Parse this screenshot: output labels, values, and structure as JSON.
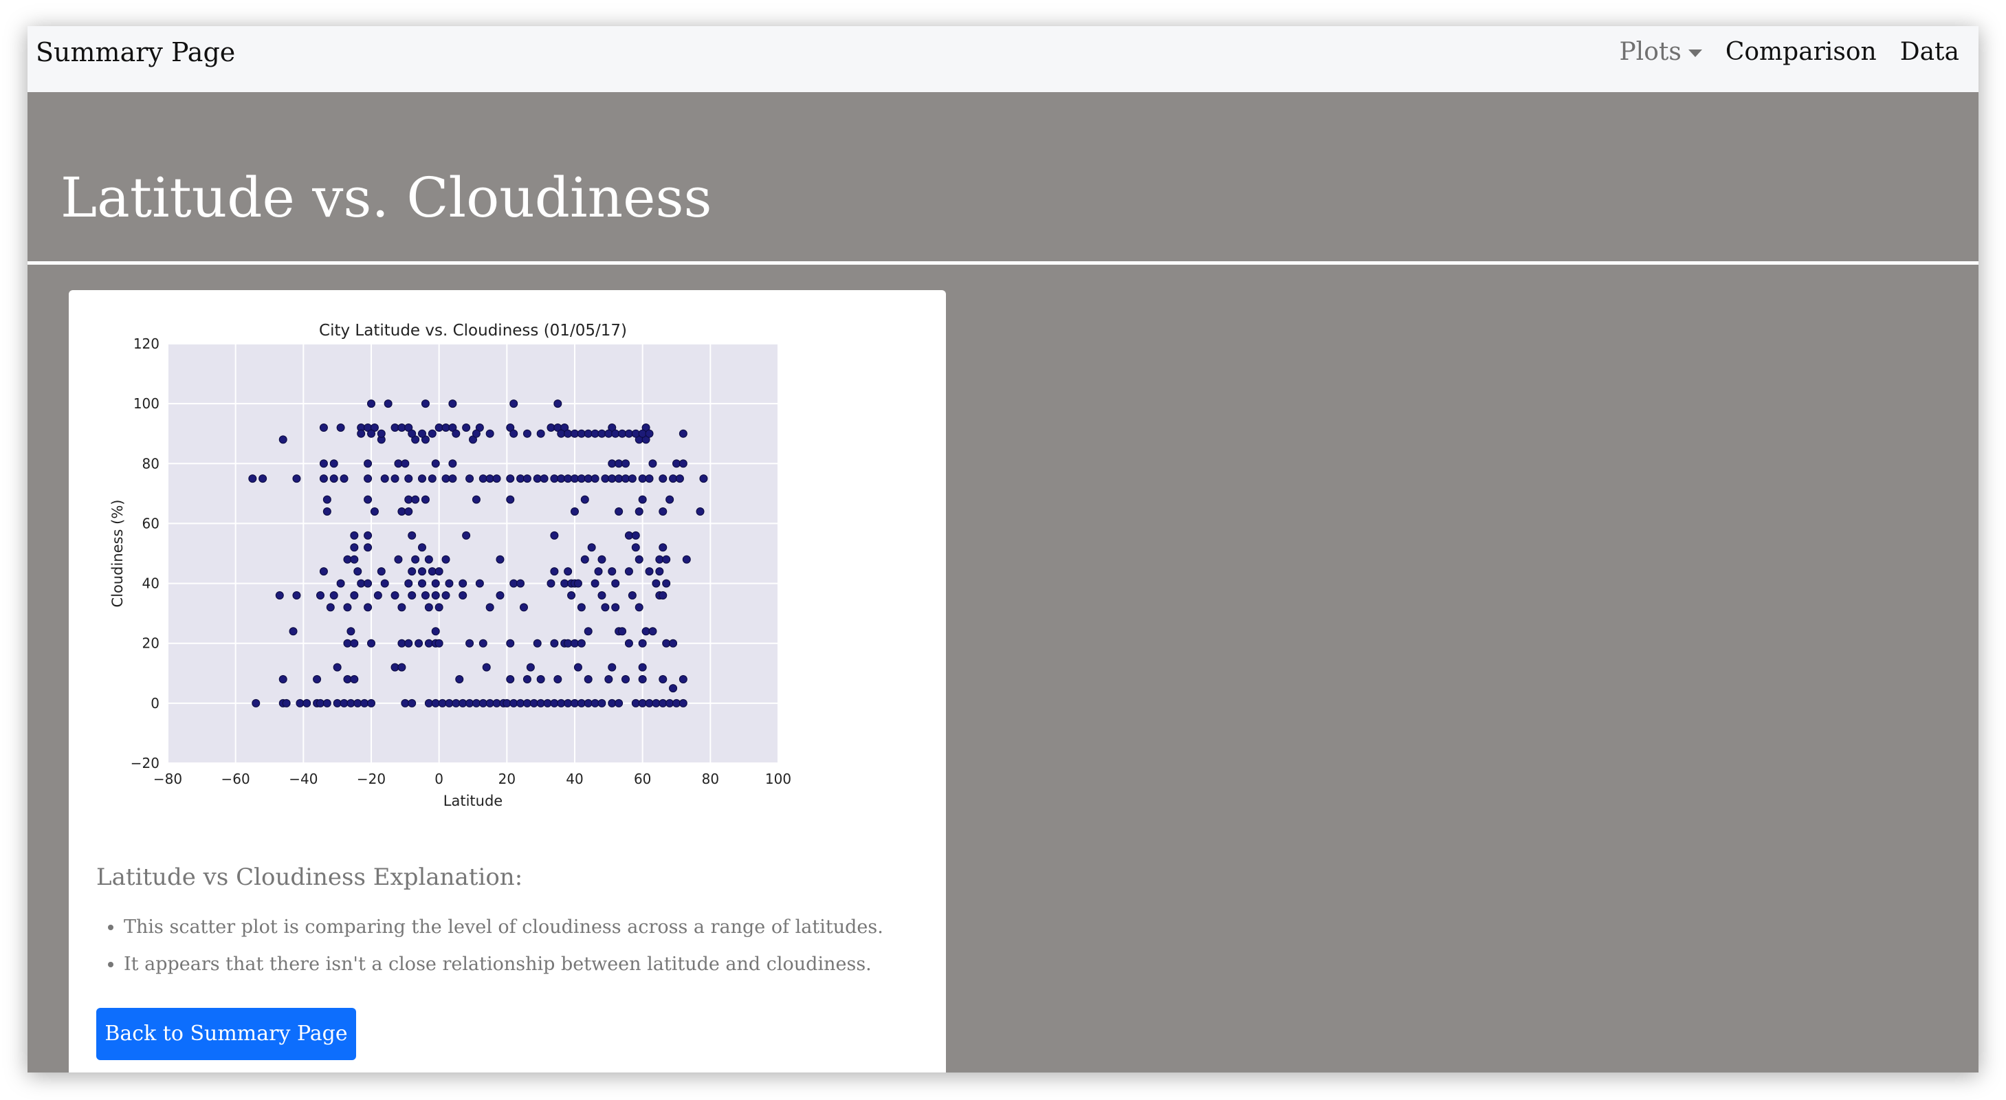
{
  "navbar": {
    "brand": "Summary Page",
    "items": [
      {
        "label": "Plots",
        "dropdown": true
      },
      {
        "label": "Comparison"
      },
      {
        "label": "Data"
      }
    ]
  },
  "page": {
    "title": "Latitude vs. Cloudiness"
  },
  "explanation": {
    "heading": "Latitude vs Cloudiness Explanation:",
    "bullets": [
      "This scatter plot is comparing the level of cloudiness across a range of latitudes.",
      "It appears that there isn't a close relationship between latitude and cloudiness."
    ]
  },
  "back_button": {
    "label": "Back to Summary Page"
  },
  "colors": {
    "background": "#8d8a88",
    "navbar": "#f6f7f9",
    "button": "#0d6efd",
    "plot_bg": "#e5e4ef",
    "marker": "#1c1a78"
  },
  "chart_data": {
    "type": "scatter",
    "title": "City Latitude vs. Cloudiness (01/05/17)",
    "xlabel": "Latitude",
    "ylabel": "Cloudiness (%)",
    "xlim": [
      -80,
      100
    ],
    "ylim": [
      -20,
      120
    ],
    "xticks": [
      -80,
      -60,
      -40,
      -20,
      0,
      20,
      40,
      60,
      80,
      100
    ],
    "yticks": [
      -20,
      0,
      20,
      40,
      60,
      80,
      100,
      120
    ],
    "xtick_labels": [
      "−80",
      "−60",
      "−40",
      "−20",
      "0",
      "20",
      "40",
      "60",
      "80",
      "100"
    ],
    "ytick_labels": [
      "−20",
      "0",
      "20",
      "40",
      "60",
      "80",
      "100",
      "120"
    ],
    "grid": true,
    "points": [
      [
        -54,
        0
      ],
      [
        -46,
        0
      ],
      [
        -45,
        0
      ],
      [
        -41,
        0
      ],
      [
        -39,
        0
      ],
      [
        -36,
        0
      ],
      [
        -35,
        0
      ],
      [
        -33,
        0
      ],
      [
        -30,
        0
      ],
      [
        -28,
        0
      ],
      [
        -26,
        0
      ],
      [
        -24,
        0
      ],
      [
        -22,
        0
      ],
      [
        -20,
        0
      ],
      [
        -10,
        0
      ],
      [
        -8,
        0
      ],
      [
        -3,
        0
      ],
      [
        -1,
        0
      ],
      [
        1,
        0
      ],
      [
        3,
        0
      ],
      [
        5,
        0
      ],
      [
        7,
        0
      ],
      [
        9,
        0
      ],
      [
        11,
        0
      ],
      [
        13,
        0
      ],
      [
        15,
        0
      ],
      [
        17,
        0
      ],
      [
        19,
        0
      ],
      [
        20,
        0
      ],
      [
        22,
        0
      ],
      [
        24,
        0
      ],
      [
        26,
        0
      ],
      [
        28,
        0
      ],
      [
        30,
        0
      ],
      [
        32,
        0
      ],
      [
        34,
        0
      ],
      [
        36,
        0
      ],
      [
        38,
        0
      ],
      [
        40,
        0
      ],
      [
        42,
        0
      ],
      [
        44,
        0
      ],
      [
        46,
        0
      ],
      [
        48,
        0
      ],
      [
        51,
        0
      ],
      [
        53,
        0
      ],
      [
        58,
        0
      ],
      [
        60,
        0
      ],
      [
        62,
        0
      ],
      [
        64,
        0
      ],
      [
        66,
        0
      ],
      [
        68,
        0
      ],
      [
        70,
        0
      ],
      [
        72,
        0
      ],
      [
        -46,
        8
      ],
      [
        -36,
        8
      ],
      [
        -27,
        8
      ],
      [
        -25,
        8
      ],
      [
        6,
        8
      ],
      [
        21,
        8
      ],
      [
        26,
        8
      ],
      [
        30,
        8
      ],
      [
        35,
        8
      ],
      [
        44,
        8
      ],
      [
        50,
        8
      ],
      [
        55,
        8
      ],
      [
        60,
        8
      ],
      [
        66,
        8
      ],
      [
        72,
        8
      ],
      [
        -30,
        12
      ],
      [
        -13,
        12
      ],
      [
        -11,
        12
      ],
      [
        14,
        12
      ],
      [
        27,
        12
      ],
      [
        41,
        12
      ],
      [
        51,
        12
      ],
      [
        60,
        12
      ],
      [
        69,
        5
      ],
      [
        -43,
        24
      ],
      [
        -26,
        24
      ],
      [
        -1,
        24
      ],
      [
        44,
        24
      ],
      [
        53,
        24
      ],
      [
        54,
        24
      ],
      [
        61,
        24
      ],
      [
        63,
        24
      ],
      [
        -27,
        20
      ],
      [
        -25,
        20
      ],
      [
        -20,
        20
      ],
      [
        -11,
        20
      ],
      [
        -9,
        20
      ],
      [
        -6,
        20
      ],
      [
        -3,
        20
      ],
      [
        -1,
        20
      ],
      [
        0,
        20
      ],
      [
        9,
        20
      ],
      [
        13,
        20
      ],
      [
        21,
        20
      ],
      [
        29,
        20
      ],
      [
        34,
        20
      ],
      [
        37,
        20
      ],
      [
        38,
        20
      ],
      [
        40,
        20
      ],
      [
        42,
        20
      ],
      [
        56,
        20
      ],
      [
        60,
        20
      ],
      [
        67,
        20
      ],
      [
        69,
        20
      ],
      [
        -47,
        36
      ],
      [
        -42,
        36
      ],
      [
        -35,
        36
      ],
      [
        -31,
        36
      ],
      [
        -25,
        36
      ],
      [
        -18,
        36
      ],
      [
        -13,
        36
      ],
      [
        -8,
        36
      ],
      [
        -4,
        36
      ],
      [
        -1,
        36
      ],
      [
        2,
        36
      ],
      [
        7,
        36
      ],
      [
        18,
        36
      ],
      [
        39,
        36
      ],
      [
        48,
        36
      ],
      [
        57,
        36
      ],
      [
        65,
        36
      ],
      [
        66,
        36
      ],
      [
        -32,
        32
      ],
      [
        -27,
        32
      ],
      [
        -21,
        32
      ],
      [
        -11,
        32
      ],
      [
        -3,
        32
      ],
      [
        0,
        32
      ],
      [
        15,
        32
      ],
      [
        25,
        32
      ],
      [
        42,
        32
      ],
      [
        49,
        32
      ],
      [
        52,
        32
      ],
      [
        59,
        32
      ],
      [
        -29,
        40
      ],
      [
        -23,
        40
      ],
      [
        -21,
        40
      ],
      [
        -16,
        40
      ],
      [
        -9,
        40
      ],
      [
        -5,
        40
      ],
      [
        -1,
        40
      ],
      [
        3,
        40
      ],
      [
        7,
        40
      ],
      [
        12,
        40
      ],
      [
        22,
        40
      ],
      [
        24,
        40
      ],
      [
        33,
        40
      ],
      [
        37,
        40
      ],
      [
        39,
        40
      ],
      [
        40,
        40
      ],
      [
        41,
        40
      ],
      [
        46,
        40
      ],
      [
        52,
        40
      ],
      [
        64,
        40
      ],
      [
        67,
        40
      ],
      [
        -34,
        44
      ],
      [
        -24,
        44
      ],
      [
        -17,
        44
      ],
      [
        -8,
        44
      ],
      [
        -5,
        44
      ],
      [
        -2,
        44
      ],
      [
        0,
        44
      ],
      [
        34,
        44
      ],
      [
        38,
        44
      ],
      [
        47,
        44
      ],
      [
        51,
        44
      ],
      [
        56,
        44
      ],
      [
        62,
        44
      ],
      [
        65,
        44
      ],
      [
        -27,
        48
      ],
      [
        -25,
        48
      ],
      [
        -12,
        48
      ],
      [
        -7,
        48
      ],
      [
        -3,
        48
      ],
      [
        2,
        48
      ],
      [
        18,
        48
      ],
      [
        43,
        48
      ],
      [
        48,
        48
      ],
      [
        59,
        48
      ],
      [
        65,
        48
      ],
      [
        67,
        48
      ],
      [
        73,
        48
      ],
      [
        -25,
        52
      ],
      [
        -21,
        52
      ],
      [
        -5,
        52
      ],
      [
        45,
        52
      ],
      [
        58,
        52
      ],
      [
        66,
        52
      ],
      [
        -25,
        56
      ],
      [
        -21,
        56
      ],
      [
        -8,
        56
      ],
      [
        8,
        56
      ],
      [
        34,
        56
      ],
      [
        56,
        56
      ],
      [
        58,
        56
      ],
      [
        -33,
        64
      ],
      [
        -19,
        64
      ],
      [
        -11,
        64
      ],
      [
        -9,
        64
      ],
      [
        40,
        64
      ],
      [
        53,
        64
      ],
      [
        59,
        64
      ],
      [
        66,
        64
      ],
      [
        77,
        64
      ],
      [
        -33,
        68
      ],
      [
        -21,
        68
      ],
      [
        -9,
        68
      ],
      [
        -7,
        68
      ],
      [
        -4,
        68
      ],
      [
        11,
        68
      ],
      [
        21,
        68
      ],
      [
        43,
        68
      ],
      [
        60,
        68
      ],
      [
        68,
        68
      ],
      [
        -55,
        75
      ],
      [
        -52,
        75
      ],
      [
        -42,
        75
      ],
      [
        -34,
        75
      ],
      [
        -31,
        75
      ],
      [
        -28,
        75
      ],
      [
        -21,
        75
      ],
      [
        -16,
        75
      ],
      [
        -13,
        75
      ],
      [
        -9,
        75
      ],
      [
        -5,
        75
      ],
      [
        -2,
        75
      ],
      [
        2,
        75
      ],
      [
        4,
        75
      ],
      [
        9,
        75
      ],
      [
        13,
        75
      ],
      [
        15,
        75
      ],
      [
        17,
        75
      ],
      [
        21,
        75
      ],
      [
        24,
        75
      ],
      [
        26,
        75
      ],
      [
        29,
        75
      ],
      [
        31,
        75
      ],
      [
        34,
        75
      ],
      [
        36,
        75
      ],
      [
        38,
        75
      ],
      [
        40,
        75
      ],
      [
        42,
        75
      ],
      [
        44,
        75
      ],
      [
        46,
        75
      ],
      [
        49,
        75
      ],
      [
        51,
        75
      ],
      [
        53,
        75
      ],
      [
        55,
        75
      ],
      [
        57,
        75
      ],
      [
        60,
        75
      ],
      [
        62,
        75
      ],
      [
        66,
        75
      ],
      [
        69,
        75
      ],
      [
        71,
        75
      ],
      [
        78,
        75
      ],
      [
        -34,
        80
      ],
      [
        -31,
        80
      ],
      [
        -21,
        80
      ],
      [
        -12,
        80
      ],
      [
        -10,
        80
      ],
      [
        -1,
        80
      ],
      [
        4,
        80
      ],
      [
        51,
        80
      ],
      [
        53,
        80
      ],
      [
        55,
        80
      ],
      [
        63,
        80
      ],
      [
        70,
        80
      ],
      [
        72,
        80
      ],
      [
        -46,
        88
      ],
      [
        -17,
        88
      ],
      [
        -7,
        88
      ],
      [
        -4,
        88
      ],
      [
        10,
        88
      ],
      [
        59,
        88
      ],
      [
        61,
        88
      ],
      [
        -34,
        92
      ],
      [
        -29,
        92
      ],
      [
        -23,
        92
      ],
      [
        -21,
        92
      ],
      [
        -19,
        92
      ],
      [
        -13,
        92
      ],
      [
        -11,
        92
      ],
      [
        -9,
        92
      ],
      [
        0,
        92
      ],
      [
        2,
        92
      ],
      [
        4,
        92
      ],
      [
        8,
        92
      ],
      [
        12,
        92
      ],
      [
        21,
        92
      ],
      [
        33,
        92
      ],
      [
        35,
        92
      ],
      [
        37,
        92
      ],
      [
        51,
        92
      ],
      [
        61,
        92
      ],
      [
        -23,
        90
      ],
      [
        -20,
        90
      ],
      [
        -17,
        90
      ],
      [
        -8,
        90
      ],
      [
        -5,
        90
      ],
      [
        -2,
        90
      ],
      [
        5,
        90
      ],
      [
        11,
        90
      ],
      [
        15,
        90
      ],
      [
        22,
        90
      ],
      [
        26,
        90
      ],
      [
        30,
        90
      ],
      [
        36,
        90
      ],
      [
        38,
        90
      ],
      [
        40,
        90
      ],
      [
        42,
        90
      ],
      [
        44,
        90
      ],
      [
        46,
        90
      ],
      [
        48,
        90
      ],
      [
        50,
        90
      ],
      [
        52,
        90
      ],
      [
        54,
        90
      ],
      [
        56,
        90
      ],
      [
        58,
        90
      ],
      [
        60,
        90
      ],
      [
        62,
        90
      ],
      [
        72,
        90
      ],
      [
        -20,
        100
      ],
      [
        -15,
        100
      ],
      [
        -4,
        100
      ],
      [
        4,
        100
      ],
      [
        22,
        100
      ],
      [
        35,
        100
      ]
    ]
  }
}
